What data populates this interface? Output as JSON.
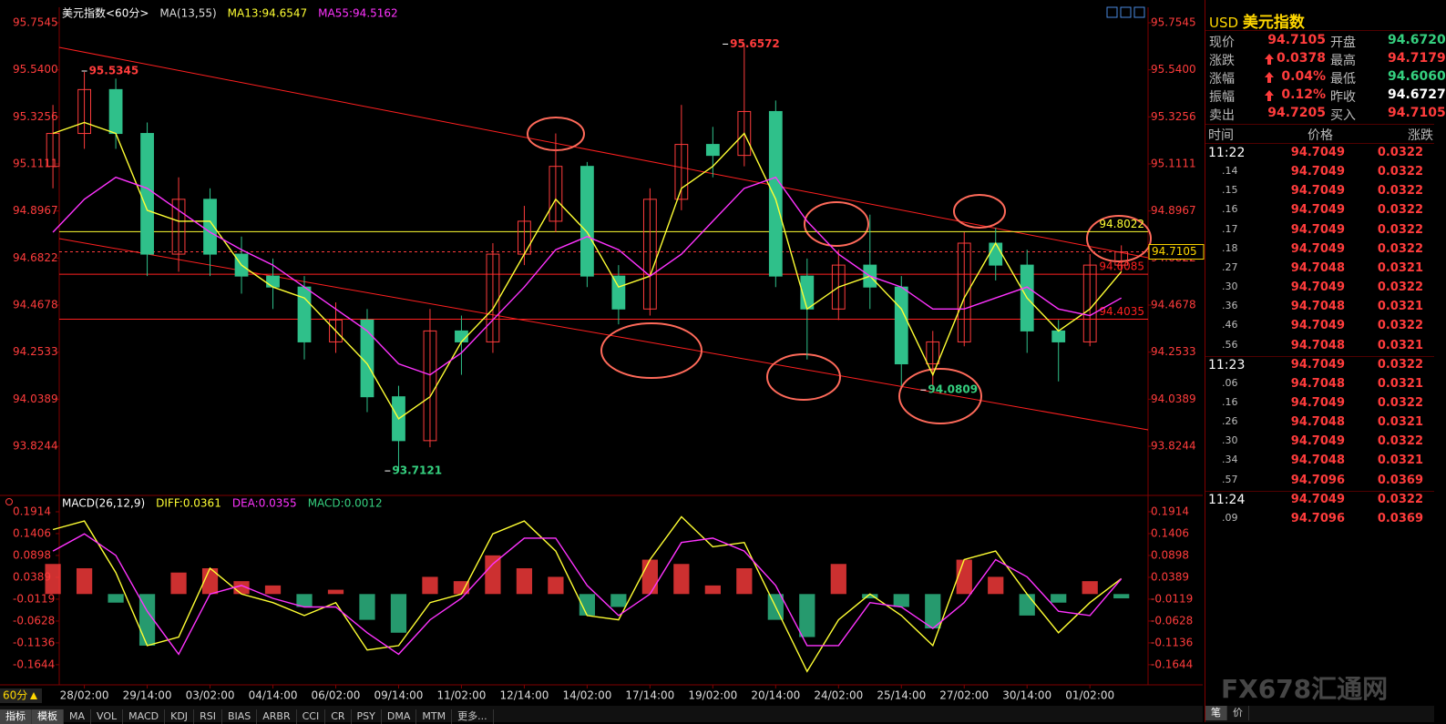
{
  "chart_data": [
    {
      "type": "candlestick",
      "title": "美元指数<60分>",
      "indicator": "MA(13,55)",
      "x": [
        0,
        1,
        2,
        3,
        4,
        5,
        6,
        7,
        8,
        9,
        10,
        11,
        12,
        13,
        14,
        15,
        16,
        17,
        18,
        19,
        20,
        21,
        22,
        23,
        24,
        25,
        26,
        27,
        28,
        29,
        30,
        31,
        32,
        33,
        34
      ],
      "xlim": [
        0.2,
        34.85
      ],
      "xticks": [
        {
          "value": 1,
          "label": "28/02:00"
        },
        {
          "value": 3,
          "label": "29/14:00"
        },
        {
          "value": 5,
          "label": "03/02:00"
        },
        {
          "value": 7,
          "label": "04/14:00"
        },
        {
          "value": 9,
          "label": "06/02:00"
        },
        {
          "value": 11,
          "label": "09/14:00"
        },
        {
          "value": 13,
          "label": "11/02:00"
        },
        {
          "value": 15,
          "label": "12/14:00"
        },
        {
          "value": 17,
          "label": "14/02:00"
        },
        {
          "value": 19,
          "label": "17/14:00"
        },
        {
          "value": 21,
          "label": "19/02:00"
        },
        {
          "value": 23,
          "label": "20/14:00"
        },
        {
          "value": 25,
          "label": "24/02:00"
        },
        {
          "value": 27,
          "label": "25/14:00"
        },
        {
          "value": 29,
          "label": "27/02:00"
        },
        {
          "value": 31,
          "label": "30/14:00"
        },
        {
          "value": 33,
          "label": "01/02:00"
        }
      ],
      "ylim": [
        93.617,
        95.8167
      ],
      "yticks": [
        95.7545,
        {
          "value": 95.54,
          "label": "95.5400"
        },
        95.3256,
        95.1111,
        94.8967,
        94.6822,
        94.4678,
        94.2533,
        94.0389,
        93.8244
      ],
      "open": [
        95.1,
        95.25,
        95.45,
        95.25,
        94.7,
        94.95,
        94.7,
        94.6,
        94.55,
        94.3,
        94.4,
        94.05,
        93.85,
        94.35,
        94.3,
        94.7,
        94.85,
        95.1,
        94.6,
        94.45,
        94.95,
        95.2,
        95.15,
        95.35,
        94.6,
        94.45,
        94.65,
        94.55,
        94.2,
        94.3,
        94.75,
        94.65,
        94.35,
        94.3,
        94.65
      ],
      "high": [
        95.38,
        95.53,
        95.5,
        95.3,
        95.05,
        95.0,
        94.78,
        94.68,
        94.6,
        94.48,
        94.45,
        94.1,
        94.45,
        94.42,
        94.75,
        94.92,
        95.25,
        95.12,
        94.65,
        95.0,
        95.38,
        95.28,
        95.66,
        95.4,
        94.68,
        94.72,
        94.88,
        94.6,
        94.35,
        94.8,
        94.82,
        94.72,
        94.4,
        94.7,
        94.74
      ],
      "low": [
        95.0,
        95.18,
        95.18,
        94.6,
        94.62,
        94.6,
        94.52,
        94.45,
        94.22,
        94.25,
        93.98,
        93.71,
        93.82,
        94.15,
        94.25,
        94.65,
        94.8,
        94.55,
        94.38,
        94.42,
        94.9,
        95.05,
        95.1,
        94.55,
        94.22,
        94.4,
        94.45,
        94.1,
        94.08,
        94.28,
        94.58,
        94.25,
        94.12,
        94.28,
        94.62
      ],
      "close": [
        95.25,
        95.45,
        95.25,
        94.7,
        94.95,
        94.7,
        94.6,
        94.55,
        94.3,
        94.4,
        94.05,
        93.85,
        94.35,
        94.3,
        94.7,
        94.85,
        95.1,
        94.6,
        94.45,
        94.95,
        95.2,
        95.15,
        95.35,
        94.6,
        94.45,
        94.65,
        94.55,
        94.2,
        94.3,
        94.75,
        94.65,
        94.35,
        94.3,
        94.65,
        94.71
      ],
      "up_color": "#ff3c3c",
      "down_color": "#2fc08a",
      "series": [
        {
          "name": "MA13:94.6547",
          "color": "#ffff33",
          "values": [
            95.25,
            95.3,
            95.25,
            94.9,
            94.85,
            94.85,
            94.65,
            94.55,
            94.5,
            94.35,
            94.2,
            93.95,
            94.05,
            94.3,
            94.45,
            94.7,
            94.95,
            94.8,
            94.55,
            94.6,
            95.0,
            95.1,
            95.25,
            94.95,
            94.45,
            94.55,
            94.6,
            94.45,
            94.15,
            94.5,
            94.75,
            94.5,
            94.35,
            94.45,
            94.62
          ]
        },
        {
          "name": "MA55:94.5162",
          "color": "#ff33ff",
          "values": [
            94.8,
            94.95,
            95.05,
            95.0,
            94.9,
            94.8,
            94.72,
            94.65,
            94.55,
            94.45,
            94.35,
            94.2,
            94.15,
            94.25,
            94.4,
            94.55,
            94.72,
            94.78,
            94.72,
            94.6,
            94.7,
            94.85,
            95.0,
            95.05,
            94.85,
            94.7,
            94.6,
            94.55,
            94.45,
            94.45,
            94.5,
            94.55,
            94.45,
            94.42,
            94.5
          ]
        }
      ],
      "levels": [
        {
          "value": 94.8022,
          "color": "#ffff33"
        },
        {
          "value": 94.6085,
          "color": "#ff2020"
        },
        {
          "value": 94.4035,
          "color": "#ff2020"
        }
      ],
      "last_price": 94.7105,
      "extremes": [
        {
          "x": 1,
          "value": 95.5345,
          "color": "#ff3c3c"
        },
        {
          "x": 21.4,
          "value": 95.6572,
          "color": "#ff3c3c"
        },
        {
          "x": 10.65,
          "value": 93.7121,
          "color": "#35d07f"
        },
        {
          "x": 27.7,
          "value": 94.0809,
          "color": "#35d07f"
        }
      ]
    },
    {
      "type": "macd",
      "title": "MACD(26,12,9)",
      "x": [
        0,
        1,
        2,
        3,
        4,
        5,
        6,
        7,
        8,
        9,
        10,
        11,
        12,
        13,
        14,
        15,
        16,
        17,
        18,
        19,
        20,
        21,
        22,
        23,
        24,
        25,
        26,
        27,
        28,
        29,
        30,
        31,
        32,
        33,
        34
      ],
      "xlim": [
        0.2,
        34.85
      ],
      "ylim": [
        -0.207,
        0.221
      ],
      "yticks": [
        0.1914,
        0.1406,
        0.0898,
        0.0389,
        -0.0119,
        -0.0628,
        -0.1136,
        -0.1644
      ],
      "up_color": "#ff3c3c",
      "down_color": "#2fc08a",
      "histogram": {
        "name": "MACD:0.0012",
        "color": "#35d07f",
        "values": [
          0.07,
          0.06,
          -0.02,
          -0.12,
          0.05,
          0.06,
          0.03,
          0.02,
          -0.03,
          0.01,
          -0.06,
          -0.09,
          0.04,
          0.03,
          0.09,
          0.06,
          0.04,
          -0.05,
          -0.03,
          0.08,
          0.07,
          0.02,
          0.06,
          -0.06,
          -0.1,
          0.07,
          -0.01,
          -0.03,
          -0.08,
          0.08,
          0.04,
          -0.05,
          -0.02,
          0.03,
          -0.01
        ]
      },
      "series": [
        {
          "name": "DIFF:0.0361",
          "color": "#ffff33",
          "values": [
            0.15,
            0.17,
            0.05,
            -0.12,
            -0.1,
            0.06,
            0.0,
            -0.02,
            -0.05,
            -0.02,
            -0.13,
            -0.12,
            -0.02,
            0.0,
            0.14,
            0.17,
            0.1,
            -0.05,
            -0.06,
            0.08,
            0.18,
            0.11,
            0.12,
            -0.03,
            -0.18,
            -0.06,
            0.0,
            -0.05,
            -0.12,
            0.08,
            0.1,
            0.0,
            -0.09,
            -0.02,
            0.036
          ]
        },
        {
          "name": "DEA:0.0355",
          "color": "#ff33ff",
          "values": [
            0.1,
            0.14,
            0.09,
            -0.04,
            -0.14,
            0.0,
            0.02,
            -0.01,
            -0.03,
            -0.03,
            -0.09,
            -0.14,
            -0.06,
            -0.01,
            0.07,
            0.13,
            0.13,
            0.02,
            -0.05,
            0.0,
            0.12,
            0.13,
            0.1,
            0.02,
            -0.12,
            -0.12,
            -0.02,
            -0.03,
            -0.08,
            -0.02,
            0.08,
            0.04,
            -0.04,
            -0.05,
            0.0355
          ]
        }
      ]
    }
  ],
  "period": "60分",
  "toolbar": [
    "指标",
    "模板",
    "MA",
    "VOL",
    "MACD",
    "KDJ",
    "RSI",
    "BIAS",
    "ARBR",
    "CCI",
    "CR",
    "PSY",
    "DMA",
    "MTM",
    "更多..."
  ],
  "quote": {
    "symbol": "USD",
    "name": "美元指数",
    "rows": [
      [
        {
          "label": "现价",
          "value": "94.7105"
        },
        {
          "label": "开盘",
          "value": "94.6720"
        }
      ],
      [
        {
          "label": "涨跌",
          "value": "0.0378"
        },
        {
          "label": "最高",
          "value": "94.7179"
        }
      ],
      [
        {
          "label": "涨幅",
          "value": "0.04%"
        },
        {
          "label": "最低",
          "value": "94.6060"
        }
      ],
      [
        {
          "label": "振幅",
          "value": "0.12%"
        },
        {
          "label": "昨收",
          "value": "94.6727"
        }
      ],
      [
        {
          "label": "卖出",
          "value": "94.7205"
        },
        {
          "label": "买入",
          "value": "94.7105"
        }
      ]
    ]
  },
  "trades": {
    "columns": [
      "时间",
      "价格",
      "涨跌"
    ],
    "rows": [
      [
        "11:22",
        "94.7049",
        "0.0322"
      ],
      [
        ".14",
        "94.7049",
        "0.0322"
      ],
      [
        ".15",
        "94.7049",
        "0.0322"
      ],
      [
        ".16",
        "94.7049",
        "0.0322"
      ],
      [
        ".17",
        "94.7049",
        "0.0322"
      ],
      [
        ".18",
        "94.7049",
        "0.0322"
      ],
      [
        ".27",
        "94.7048",
        "0.0321"
      ],
      [
        ".30",
        "94.7049",
        "0.0322"
      ],
      [
        ".36",
        "94.7048",
        "0.0321"
      ],
      [
        ".46",
        "94.7049",
        "0.0322"
      ],
      [
        ".56",
        "94.7048",
        "0.0321"
      ],
      [
        "11:23",
        "94.7049",
        "0.0322"
      ],
      [
        ".06",
        "94.7048",
        "0.0321"
      ],
      [
        ".16",
        "94.7049",
        "0.0322"
      ],
      [
        ".26",
        "94.7048",
        "0.0321"
      ],
      [
        ".30",
        "94.7049",
        "0.0322"
      ],
      [
        ".34",
        "94.7048",
        "0.0321"
      ],
      [
        ".57",
        "94.7096",
        "0.0369"
      ],
      [
        "11:24",
        "94.7049",
        "0.0322"
      ],
      [
        ".09",
        "94.7096",
        "0.0369"
      ]
    ]
  },
  "side_tabs": [
    "笔",
    "价"
  ],
  "watermark": "FX678汇通网"
}
